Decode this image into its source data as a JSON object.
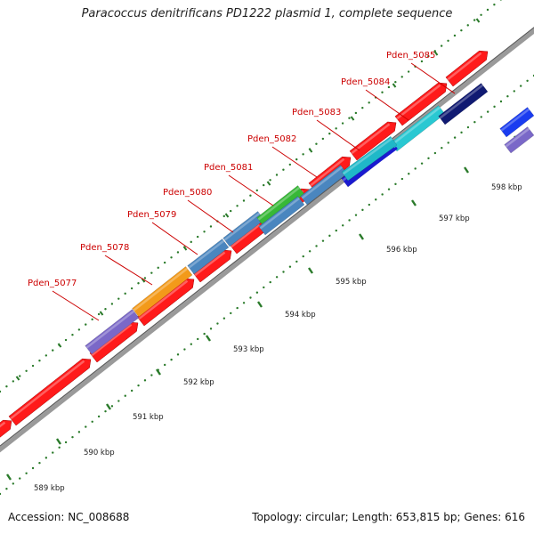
{
  "title": "Paracoccus denitrificans PD1222 plasmid 1, complete sequence",
  "footer": {
    "accession": "Accession: NC_008688",
    "topology": "Topology: circular; Length: 653,815 bp; Genes: 616"
  },
  "colors": {
    "backbone": "#8a8a8a",
    "forward_cds": "#ff1a1a",
    "tick": "#2a7a2a",
    "label": "#cc0000",
    "leader_line": "#cc0000"
  },
  "scale": {
    "unit": "kbp",
    "labels": [
      "589 kbp",
      "590 kbp",
      "591 kbp",
      "592 kbp",
      "593 kbp",
      "594 kbp",
      "595 kbp",
      "596 kbp",
      "597 kbp",
      "598 kbp"
    ]
  },
  "genes_labeled": [
    {
      "name": "Pden_5077",
      "color": "#7a68c8"
    },
    {
      "name": "Pden_5078",
      "color": "#f39a1a"
    },
    {
      "name": "Pden_5079",
      "color": "#4a86bf"
    },
    {
      "name": "Pden_5080",
      "color": "#4a86bf"
    },
    {
      "name": "Pden_5081",
      "color": "#37b837"
    },
    {
      "name": "Pden_5082",
      "color": "#4a86bf"
    },
    {
      "name": "Pden_5083",
      "color": "#1a1ad0"
    },
    {
      "name": "Pden_5084",
      "color": "#29c8d2"
    },
    {
      "name": "Pden_5085",
      "color": "#101a72"
    }
  ],
  "genes_other_colors": [
    "#1a3cf0",
    "#7a68c8"
  ]
}
